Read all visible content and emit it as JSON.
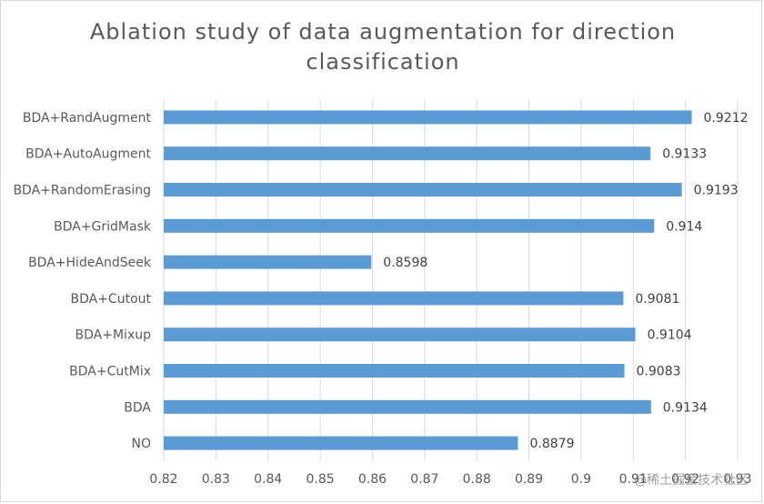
{
  "chart_data": {
    "type": "bar",
    "orientation": "horizontal",
    "title_lines": [
      "Ablation study of data augmentation for direction",
      "classification"
    ],
    "categories": [
      "BDA+RandAugment",
      "BDA+AutoAugment",
      "BDA+RandomErasing",
      "BDA+GridMask",
      "BDA+HideAndSeek",
      "BDA+Cutout",
      "BDA+Mixup",
      "BDA+CutMix",
      "BDA",
      "NO"
    ],
    "values": [
      0.9212,
      0.9133,
      0.9193,
      0.914,
      0.8598,
      0.9081,
      0.9104,
      0.9083,
      0.9134,
      0.8879
    ],
    "value_labels": [
      "0.9212",
      "0.9133",
      "0.9193",
      "0.914",
      "0.8598",
      "0.9081",
      "0.9104",
      "0.9083",
      "0.9134",
      "0.8879"
    ],
    "xlim": [
      0.82,
      0.93
    ],
    "xticks": [
      0.82,
      0.83,
      0.84,
      0.85,
      0.86,
      0.87,
      0.88,
      0.89,
      0.9,
      0.91,
      0.92,
      0.93
    ],
    "xtick_labels": [
      "0.82",
      "0.83",
      "0.84",
      "0.85",
      "0.86",
      "0.87",
      "0.88",
      "0.89",
      "0.9",
      "0.91",
      "0.92",
      "0.93"
    ],
    "grid": "vertical",
    "legend": "none",
    "bar_color": "#5b9bd5",
    "grid_color": "#d9d9d9"
  },
  "watermark": "@稀土掘金技术社区"
}
